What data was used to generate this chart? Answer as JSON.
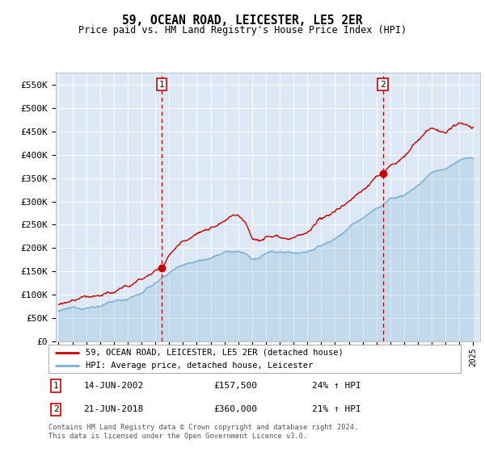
{
  "title": "59, OCEAN ROAD, LEICESTER, LE5 2ER",
  "subtitle": "Price paid vs. HM Land Registry's House Price Index (HPI)",
  "background_color": "#dce8f5",
  "ylabel_values": [
    0,
    50000,
    100000,
    150000,
    200000,
    250000,
    300000,
    350000,
    400000,
    450000,
    500000,
    550000
  ],
  "ylim": [
    0,
    577000
  ],
  "xlim_start": 1994.8,
  "xlim_end": 2025.5,
  "sale1_x": 2002.45,
  "sale1_y": 157500,
  "sale2_x": 2018.46,
  "sale2_y": 360000,
  "red_line_color": "#cc0000",
  "blue_line_color": "#7bafd4",
  "legend_label_red": "59, OCEAN ROAD, LEICESTER, LE5 2ER (detached house)",
  "legend_label_blue": "HPI: Average price, detached house, Leicester",
  "sale1_date": "14-JUN-2002",
  "sale1_price": "£157,500",
  "sale1_hpi": "24% ↑ HPI",
  "sale2_date": "21-JUN-2018",
  "sale2_price": "£360,000",
  "sale2_hpi": "21% ↑ HPI",
  "footnote": "Contains HM Land Registry data © Crown copyright and database right 2024.\nThis data is licensed under the Open Government Licence v3.0."
}
